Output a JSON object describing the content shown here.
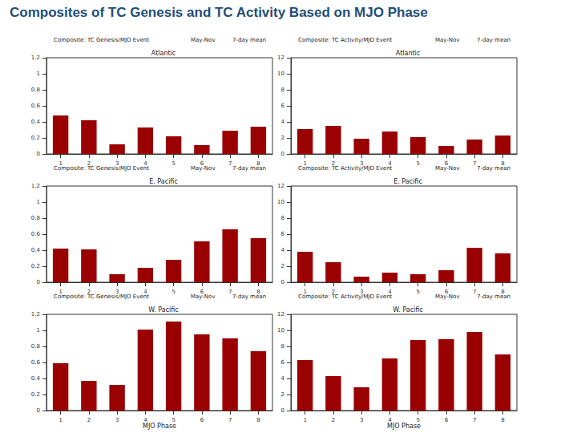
{
  "title": "Composites of TC Genesis and TC Activity Based on MJO Phase",
  "chart_data": [
    {
      "type": "bar",
      "title": "Composite: TC Genesis/MJO Event",
      "annotations": [
        "May-Nov",
        "7-day mean"
      ],
      "subtitle": "Atlantic",
      "categories": [
        "1",
        "2",
        "3",
        "4",
        "5",
        "6",
        "7",
        "8"
      ],
      "values": [
        0.48,
        0.42,
        0.12,
        0.33,
        0.22,
        0.11,
        0.29,
        0.34
      ],
      "color": "#9b0000",
      "ylim": [
        0,
        1.2
      ],
      "yticks": [
        0,
        0.2,
        0.4,
        0.6,
        0.8,
        1,
        1.2
      ],
      "grid": false
    },
    {
      "type": "bar",
      "title": "Composite: TC Activity/MJO Event",
      "annotations": [
        "May-Nov",
        "7-day mean"
      ],
      "subtitle": "Atlantic",
      "categories": [
        "1",
        "2",
        "3",
        "4",
        "5",
        "6",
        "7",
        "8"
      ],
      "values": [
        3.1,
        3.5,
        1.9,
        2.8,
        2.1,
        1.0,
        1.8,
        2.3
      ],
      "color": "#9b0000",
      "ylim": [
        0,
        12
      ],
      "yticks": [
        0,
        2,
        4,
        6,
        8,
        10,
        12
      ],
      "grid": false
    },
    {
      "type": "bar",
      "title": "Composite: TC Genesis/MJO Event",
      "annotations": [
        "May-Nov",
        "7-day mean"
      ],
      "subtitle": "E. Pacific",
      "categories": [
        "1",
        "2",
        "3",
        "4",
        "5",
        "6",
        "7",
        "8"
      ],
      "values": [
        0.42,
        0.41,
        0.1,
        0.18,
        0.28,
        0.51,
        0.66,
        0.55
      ],
      "color": "#9b0000",
      "ylim": [
        0,
        1.2
      ],
      "yticks": [
        0,
        0.2,
        0.4,
        0.6,
        0.8,
        1,
        1.2
      ],
      "grid": false
    },
    {
      "type": "bar",
      "title": "Composite: TC Activity/MJO Event",
      "annotations": [
        "May-Nov",
        "7-day mean"
      ],
      "subtitle": "E. Pacific",
      "categories": [
        "1",
        "2",
        "3",
        "4",
        "5",
        "6",
        "7",
        "8"
      ],
      "values": [
        3.8,
        2.5,
        0.7,
        1.2,
        1.0,
        1.5,
        4.3,
        3.6
      ],
      "color": "#9b0000",
      "ylim": [
        0,
        12
      ],
      "yticks": [
        0,
        2,
        4,
        6,
        8,
        10,
        12
      ],
      "grid": false
    },
    {
      "type": "bar",
      "title": "Composite: TC Genesis/MJO Event",
      "annotations": [
        "May-Nov",
        "7-day mean"
      ],
      "subtitle": "W. Pacific",
      "categories": [
        "1",
        "2",
        "3",
        "4",
        "5",
        "6",
        "7",
        "8"
      ],
      "values": [
        0.59,
        0.37,
        0.32,
        1.01,
        1.11,
        0.95,
        0.9,
        0.74
      ],
      "color": "#9b0000",
      "ylim": [
        0,
        1.2
      ],
      "yticks": [
        0,
        0.2,
        0.4,
        0.6,
        0.8,
        1,
        1.2
      ],
      "grid": false,
      "x_label": "MJO Phase"
    },
    {
      "type": "bar",
      "title": "Composite: TC Activity/MJO Event",
      "annotations": [
        "May-Nov",
        "7-day mean"
      ],
      "subtitle": "W. Pacific",
      "categories": [
        "1",
        "2",
        "3",
        "4",
        "5",
        "6",
        "7",
        "8"
      ],
      "values": [
        6.3,
        4.3,
        2.9,
        6.5,
        8.8,
        8.9,
        9.8,
        7.0
      ],
      "color": "#9b0000",
      "ylim": [
        0,
        12
      ],
      "yticks": [
        0,
        2,
        4,
        6,
        8,
        10,
        12
      ],
      "grid": false,
      "x_label": "MJO Phase"
    }
  ]
}
